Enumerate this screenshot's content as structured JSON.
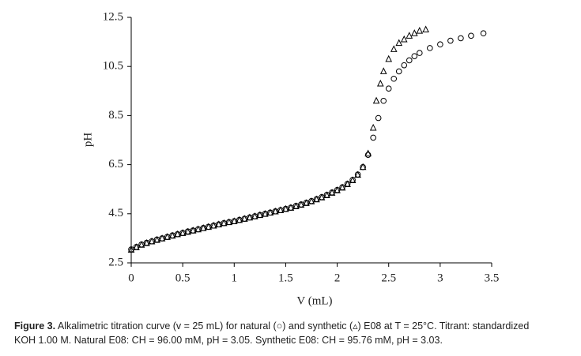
{
  "chart_data": {
    "type": "scatter",
    "xlabel": "V (mL)",
    "ylabel": "pH",
    "xlim": [
      0,
      3.5
    ],
    "xticks": [
      0,
      0.5,
      1,
      1.5,
      2,
      2.5,
      3,
      3.5
    ],
    "ylim": [
      2.5,
      12.5
    ],
    "yticks": [
      2.5,
      4.5,
      6.5,
      8.5,
      10.5,
      12.5
    ],
    "series": [
      {
        "marker": "circle",
        "color": "#000000",
        "x": [
          0,
          0.05,
          0.1,
          0.15,
          0.2,
          0.25,
          0.3,
          0.35,
          0.4,
          0.45,
          0.5,
          0.55,
          0.6,
          0.65,
          0.7,
          0.75,
          0.8,
          0.85,
          0.9,
          0.95,
          1,
          1.05,
          1.1,
          1.15,
          1.2,
          1.25,
          1.3,
          1.35,
          1.4,
          1.45,
          1.5,
          1.55,
          1.6,
          1.65,
          1.7,
          1.75,
          1.8,
          1.85,
          1.9,
          1.95,
          2,
          2.05,
          2.1,
          2.15,
          2.2,
          2.25,
          2.3,
          2.35,
          2.4,
          2.45,
          2.5,
          2.55,
          2.6,
          2.65,
          2.7,
          2.75,
          2.8,
          2.9,
          3,
          3.1,
          3.2,
          3.3,
          3.42
        ],
        "values": [
          3.05,
          3.15,
          3.25,
          3.32,
          3.38,
          3.45,
          3.5,
          3.56,
          3.62,
          3.67,
          3.72,
          3.78,
          3.82,
          3.87,
          3.92,
          3.97,
          4.02,
          4.07,
          4.12,
          4.16,
          4.2,
          4.25,
          4.3,
          4.35,
          4.4,
          4.45,
          4.5,
          4.55,
          4.6,
          4.65,
          4.7,
          4.75,
          4.82,
          4.88,
          4.95,
          5.02,
          5.1,
          5.18,
          5.27,
          5.37,
          5.47,
          5.58,
          5.72,
          5.88,
          6.1,
          6.4,
          6.9,
          7.6,
          8.4,
          9.1,
          9.6,
          10,
          10.3,
          10.55,
          10.75,
          10.92,
          11.05,
          11.25,
          11.4,
          11.55,
          11.65,
          11.75,
          11.85
        ]
      },
      {
        "marker": "triangle",
        "color": "#000000",
        "x": [
          0,
          0.05,
          0.1,
          0.15,
          0.2,
          0.25,
          0.3,
          0.35,
          0.4,
          0.45,
          0.5,
          0.55,
          0.6,
          0.65,
          0.7,
          0.75,
          0.8,
          0.85,
          0.9,
          0.95,
          1,
          1.05,
          1.1,
          1.15,
          1.2,
          1.25,
          1.3,
          1.35,
          1.4,
          1.45,
          1.5,
          1.55,
          1.6,
          1.65,
          1.7,
          1.75,
          1.8,
          1.85,
          1.9,
          1.95,
          2,
          2.05,
          2.1,
          2.15,
          2.2,
          2.25,
          2.3,
          2.35,
          2.38,
          2.42,
          2.45,
          2.5,
          2.55,
          2.6,
          2.65,
          2.7,
          2.75,
          2.8,
          2.86
        ],
        "values": [
          3.03,
          3.13,
          3.23,
          3.3,
          3.37,
          3.43,
          3.49,
          3.55,
          3.6,
          3.66,
          3.71,
          3.76,
          3.81,
          3.86,
          3.91,
          3.96,
          4.01,
          4.06,
          4.11,
          4.15,
          4.19,
          4.24,
          4.29,
          4.34,
          4.39,
          4.44,
          4.49,
          4.54,
          4.59,
          4.64,
          4.69,
          4.74,
          4.8,
          4.86,
          4.93,
          5,
          5.08,
          5.16,
          5.25,
          5.35,
          5.45,
          5.56,
          5.7,
          5.86,
          6.08,
          6.4,
          6.95,
          8,
          9.1,
          9.8,
          10.3,
          10.8,
          11.2,
          11.45,
          11.6,
          11.75,
          11.85,
          11.95,
          12
        ]
      }
    ],
    "caption": {
      "label": "Figure 3.",
      "line1": "Alkalimetric titration curve (v = 25 mL) for natural (○) and synthetic (▵) E08 at T = 25°C. Titrant: standardized",
      "line2": "KOH 1.00 M. Natural E08: CH = 96.00 mM, pH = 3.05. Synthetic E08: CH = 95.76 mM, pH = 3.03."
    }
  }
}
